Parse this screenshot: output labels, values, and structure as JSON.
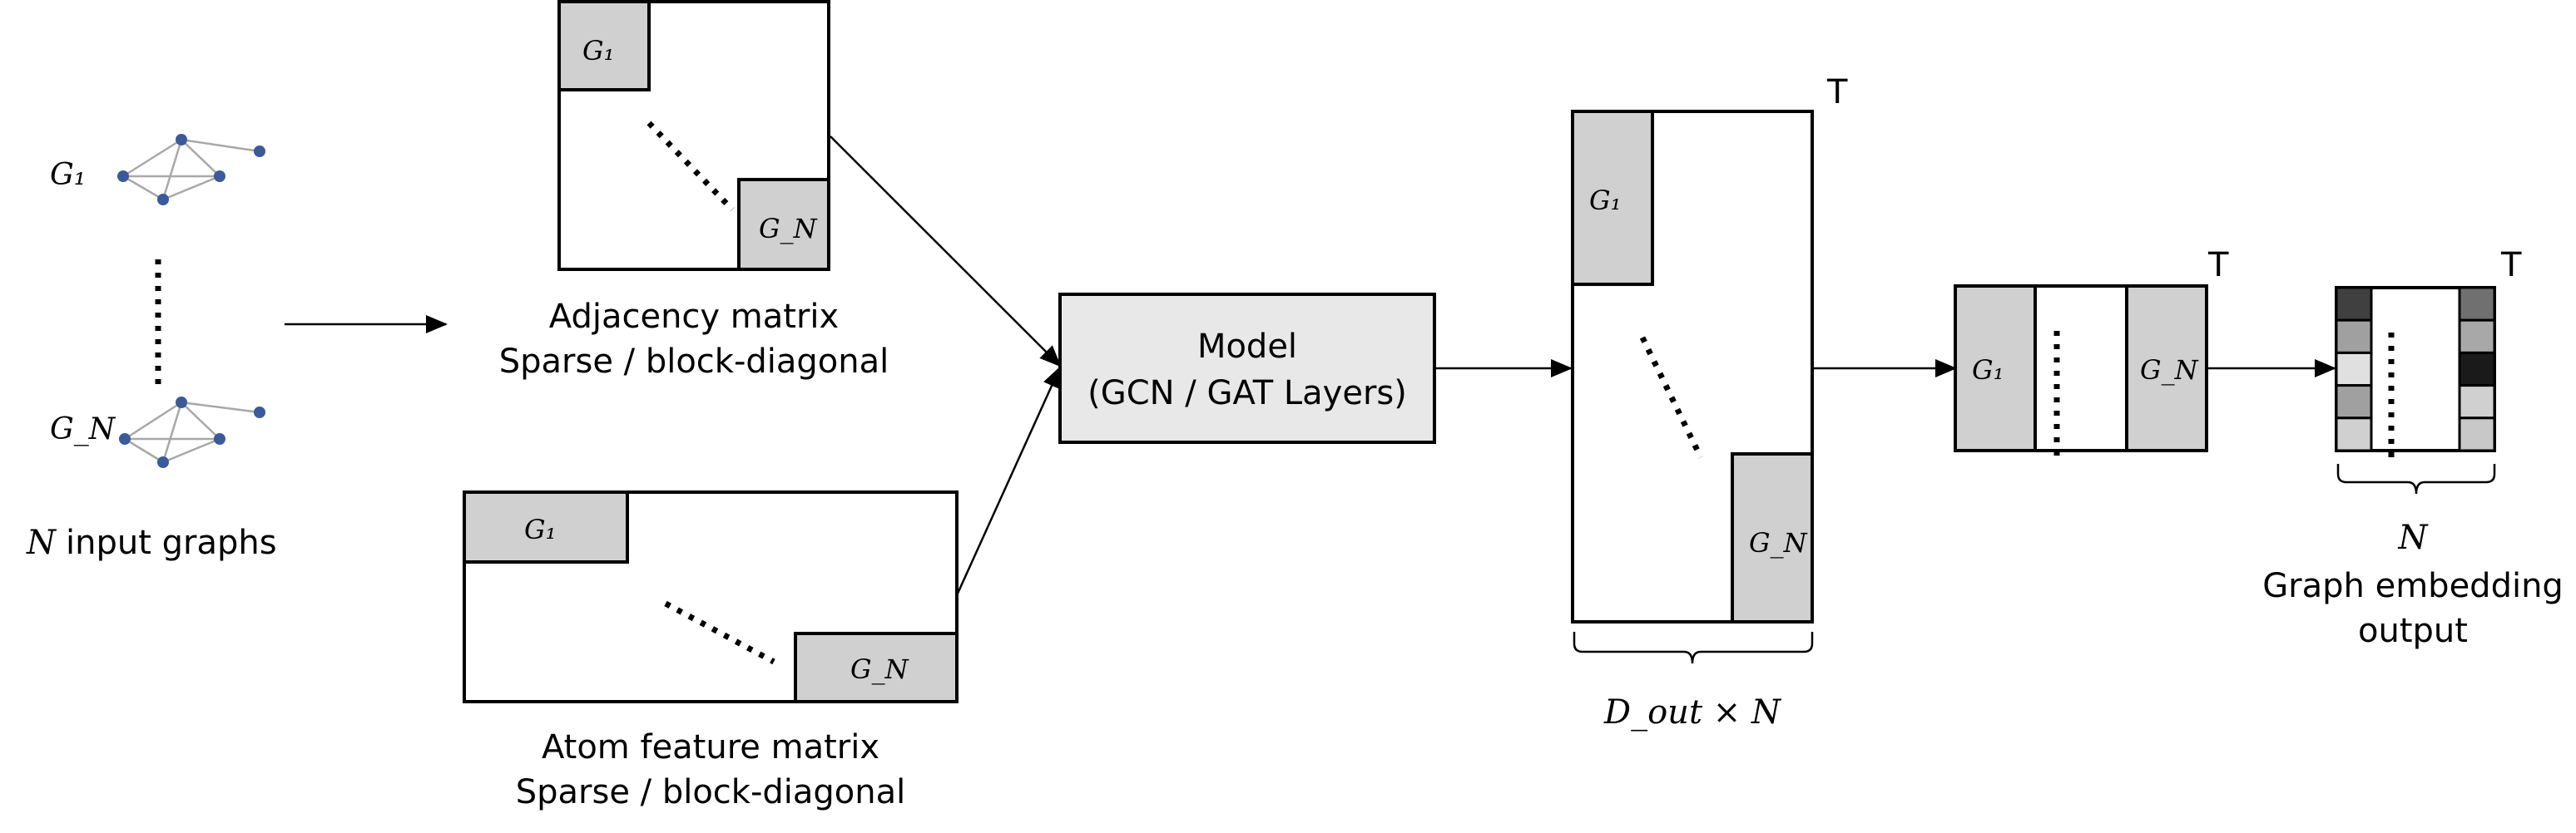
{
  "input_graphs": {
    "first_label": "G₁",
    "last_label": "G_N",
    "caption_var": "N",
    "caption_text": "input graphs"
  },
  "adjacency_matrix": {
    "block_first": "G₁",
    "block_last": "G_N",
    "caption_line1": "Adjacency matrix",
    "caption_line2": "Sparse / block-diagonal"
  },
  "atom_feature_matrix": {
    "block_first": "G₁",
    "block_last": "G_N",
    "caption_line1": "Atom feature matrix",
    "caption_line2": "Sparse / block-diagonal"
  },
  "model": {
    "line1": "Model",
    "line2": "(GCN / GAT Layers)",
    "fill": "#e8e8e8"
  },
  "node_output": {
    "block_first": "G₁",
    "block_last": "G_N",
    "transpose": "T",
    "dim_label": "D_out × N"
  },
  "pooled": {
    "block_first": "G₁",
    "block_last": "G_N",
    "transpose": "T"
  },
  "embedding": {
    "transpose": "T",
    "dim_label": "N",
    "caption_line1": "Graph embedding",
    "caption_line2": "output",
    "left_column_colors": [
      "#404040",
      "#a0a0a0",
      "#e0e0e0",
      "#a0a0a0",
      "#d0d0d0"
    ],
    "right_column_colors": [
      "#707070",
      "#a8a8a8",
      "#1a1a1a",
      "#d0d0d0",
      "#c8c8c8"
    ]
  }
}
